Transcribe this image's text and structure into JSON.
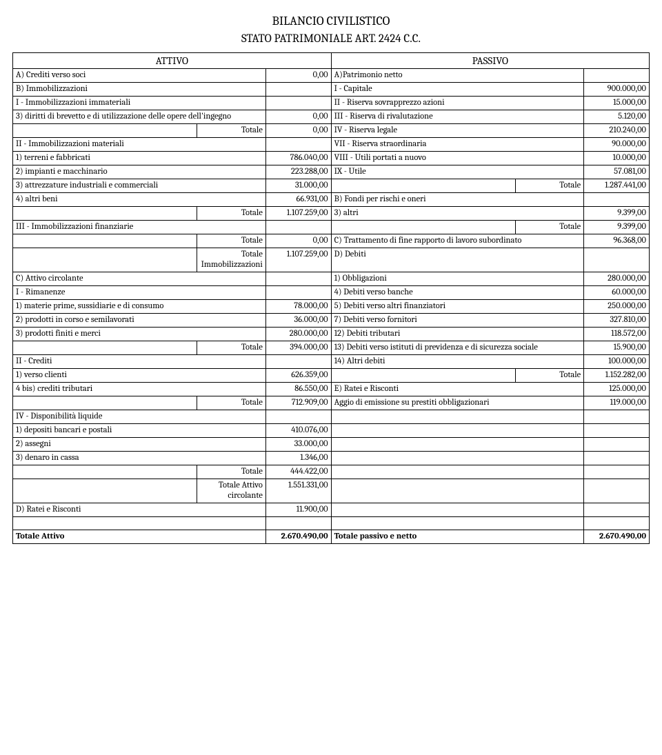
{
  "titles": {
    "main": "BILANCIO CIVILISTICO",
    "sub": "STATO PATRIMONIALE ART. 2424 C.C."
  },
  "hdr": {
    "attivo": "ATTIVO",
    "passivo": "PASSIVO"
  },
  "r": {
    "a_crediti": "A) Crediti verso soci",
    "a_crediti_v": "0,00",
    "a_patr": "A)Patrimonio netto",
    "b_imm": "B) Immobilizzazioni",
    "i_cap": "I - Capitale",
    "i_cap_v": "900.000,00",
    "i_imm_imm": "I - Immobilizzazioni immateriali",
    "ii_ris_sov": "II - Riserva sovrapprezzo azioni",
    "ii_ris_sov_v": "15.000,00",
    "diritti": "3) diritti di brevetto e di utilizzazione delle opere dell'ingegno",
    "diritti_v": "0,00",
    "iii_ris_riv": "III - Riserva di rivalutazione",
    "iii_ris_riv_v": "5.120,00",
    "tot_lbl": "Totale",
    "tot_imm_imm_v": "0,00",
    "iv_ris_leg": "IV - Riserva legale",
    "iv_ris_leg_v": "210.240,00",
    "ii_imm_mat": "II - Immobilizzazioni materiali",
    "vii_ris_str": "VII - Riserva straordinaria",
    "vii_ris_str_v": "90.000,00",
    "terreni": "1) terreni e fabbricati",
    "terreni_v": "786.040,00",
    "viii_utili": "VIII - Utili portati a nuovo",
    "viii_utili_v": "10.000,00",
    "impianti": "2) impianti e macchinario",
    "impianti_v": "223.288,00",
    "ix_utile": "IX - Utile",
    "ix_utile_v": "57.081,00",
    "attrezz": "3) attrezzature industriali e commerciali",
    "attrezz_v": "31.000,00",
    "tot_pn_v": "1.287.441,00",
    "altri_beni": "4) altri beni",
    "altri_beni_v": "66.931,00",
    "b_fondi": "B) Fondi per rischi e oneri",
    "tot_imm_mat_v": "1.107.259,00",
    "altri3": "3) altri",
    "altri3_v": "9.399,00",
    "iii_imm_fin": "III - Immobilizzazioni finanziarie",
    "tot_fondi_v": "9.399,00",
    "tot_imm_fin_v": "0,00",
    "c_tfr": "C) Trattamento di fine rapporto di lavoro subordinato",
    "c_tfr_v": "96.368,00",
    "tot_imm_lbl": "Totale Immobilizzazioni",
    "tot_imm_v": "1.107.259,00",
    "d_debiti": "D) Debiti",
    "c_att_circ": "C) Attivo circolante",
    "obbl": "1) Obbligazioni",
    "obbl_v": "280.000,00",
    "i_rim": "I - Rimanenze",
    "deb_banche": "4) Debiti verso banche",
    "deb_banche_v": "60.000,00",
    "mat_prime": "1) materie prime, sussidiarie e di consumo",
    "mat_prime_v": "78.000,00",
    "deb_fin": "5) Debiti verso altri finanziatori",
    "deb_fin_v": "250.000,00",
    "prod_corso": "2) prodotti in corso e semilavorati",
    "prod_corso_v": "36.000,00",
    "deb_forn": "7) Debiti verso fornitori",
    "deb_forn_v": "327.810,00",
    "prod_fin": "3) prodotti finiti e merci",
    "prod_fin_v": "280.000,00",
    "deb_trib": "12) Debiti tributari",
    "deb_trib_v": "118.572,00",
    "tot_rim_v": "394.000,00",
    "deb_prev": "13) Debiti verso istituti di previdenza e di sicurezza sociale",
    "deb_prev_v": "15.900,00",
    "ii_crediti": "II - Crediti",
    "altri_deb": "14) Altri debiti",
    "altri_deb_v": "100.000,00",
    "vs_clienti": "1) verso clienti",
    "vs_clienti_v": "626.359,00",
    "tot_deb_v": "1.152.282,00",
    "cred_trib": "4 bis) crediti tributari",
    "cred_trib_v": "86.550,00",
    "e_ratei": "E) Ratei e Risconti",
    "e_ratei_v": "125.000,00",
    "tot_cred_v": "712.909,00",
    "aggio": "Aggio di emissione su prestiti obbligazionari",
    "aggio_v": "119.000,00",
    "iv_disp": "IV - Disponibilità liquide",
    "dep_banc": "1) depositi bancari e postali",
    "dep_banc_v": "410.076,00",
    "assegni": "2) assegni",
    "assegni_v": "33.000,00",
    "cassa": "3) denaro in cassa",
    "cassa_v": "1.346,00",
    "tot_disp_v": "444.422,00",
    "tot_ac_lbl": "Totale Attivo circolante",
    "tot_ac_v": "1.551.331,00",
    "d_ratei": "D) Ratei e Risconti",
    "d_ratei_v": "11.900,00",
    "tot_att_lbl": "Totale Attivo",
    "tot_att_v": "2.670.490,00",
    "tot_pass_lbl": "Totale passivo e netto",
    "tot_pass_v": "2.670.490,00"
  }
}
